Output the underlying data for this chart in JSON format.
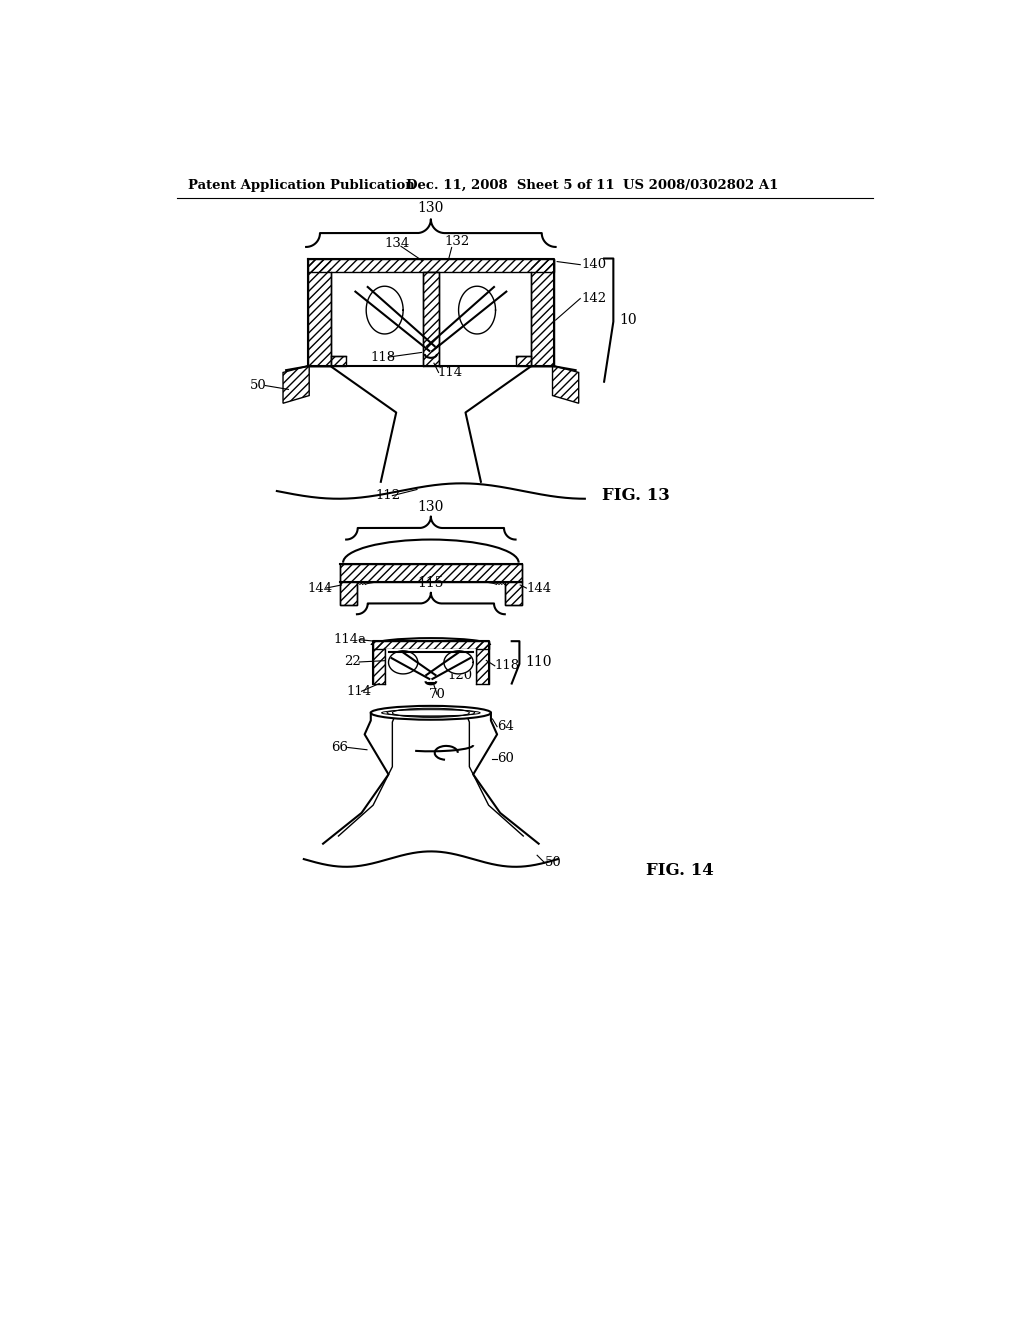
{
  "bg_color": "#ffffff",
  "line_color": "#000000",
  "header_left": "Patent Application Publication",
  "header_mid": "Dec. 11, 2008  Sheet 5 of 11",
  "header_right": "US 2008/0302802 A1",
  "fig13_label": "FIG. 13",
  "fig14_label": "FIG. 14",
  "lw_main": 1.5,
  "lw_thin": 1.0,
  "lw_label": 0.8
}
